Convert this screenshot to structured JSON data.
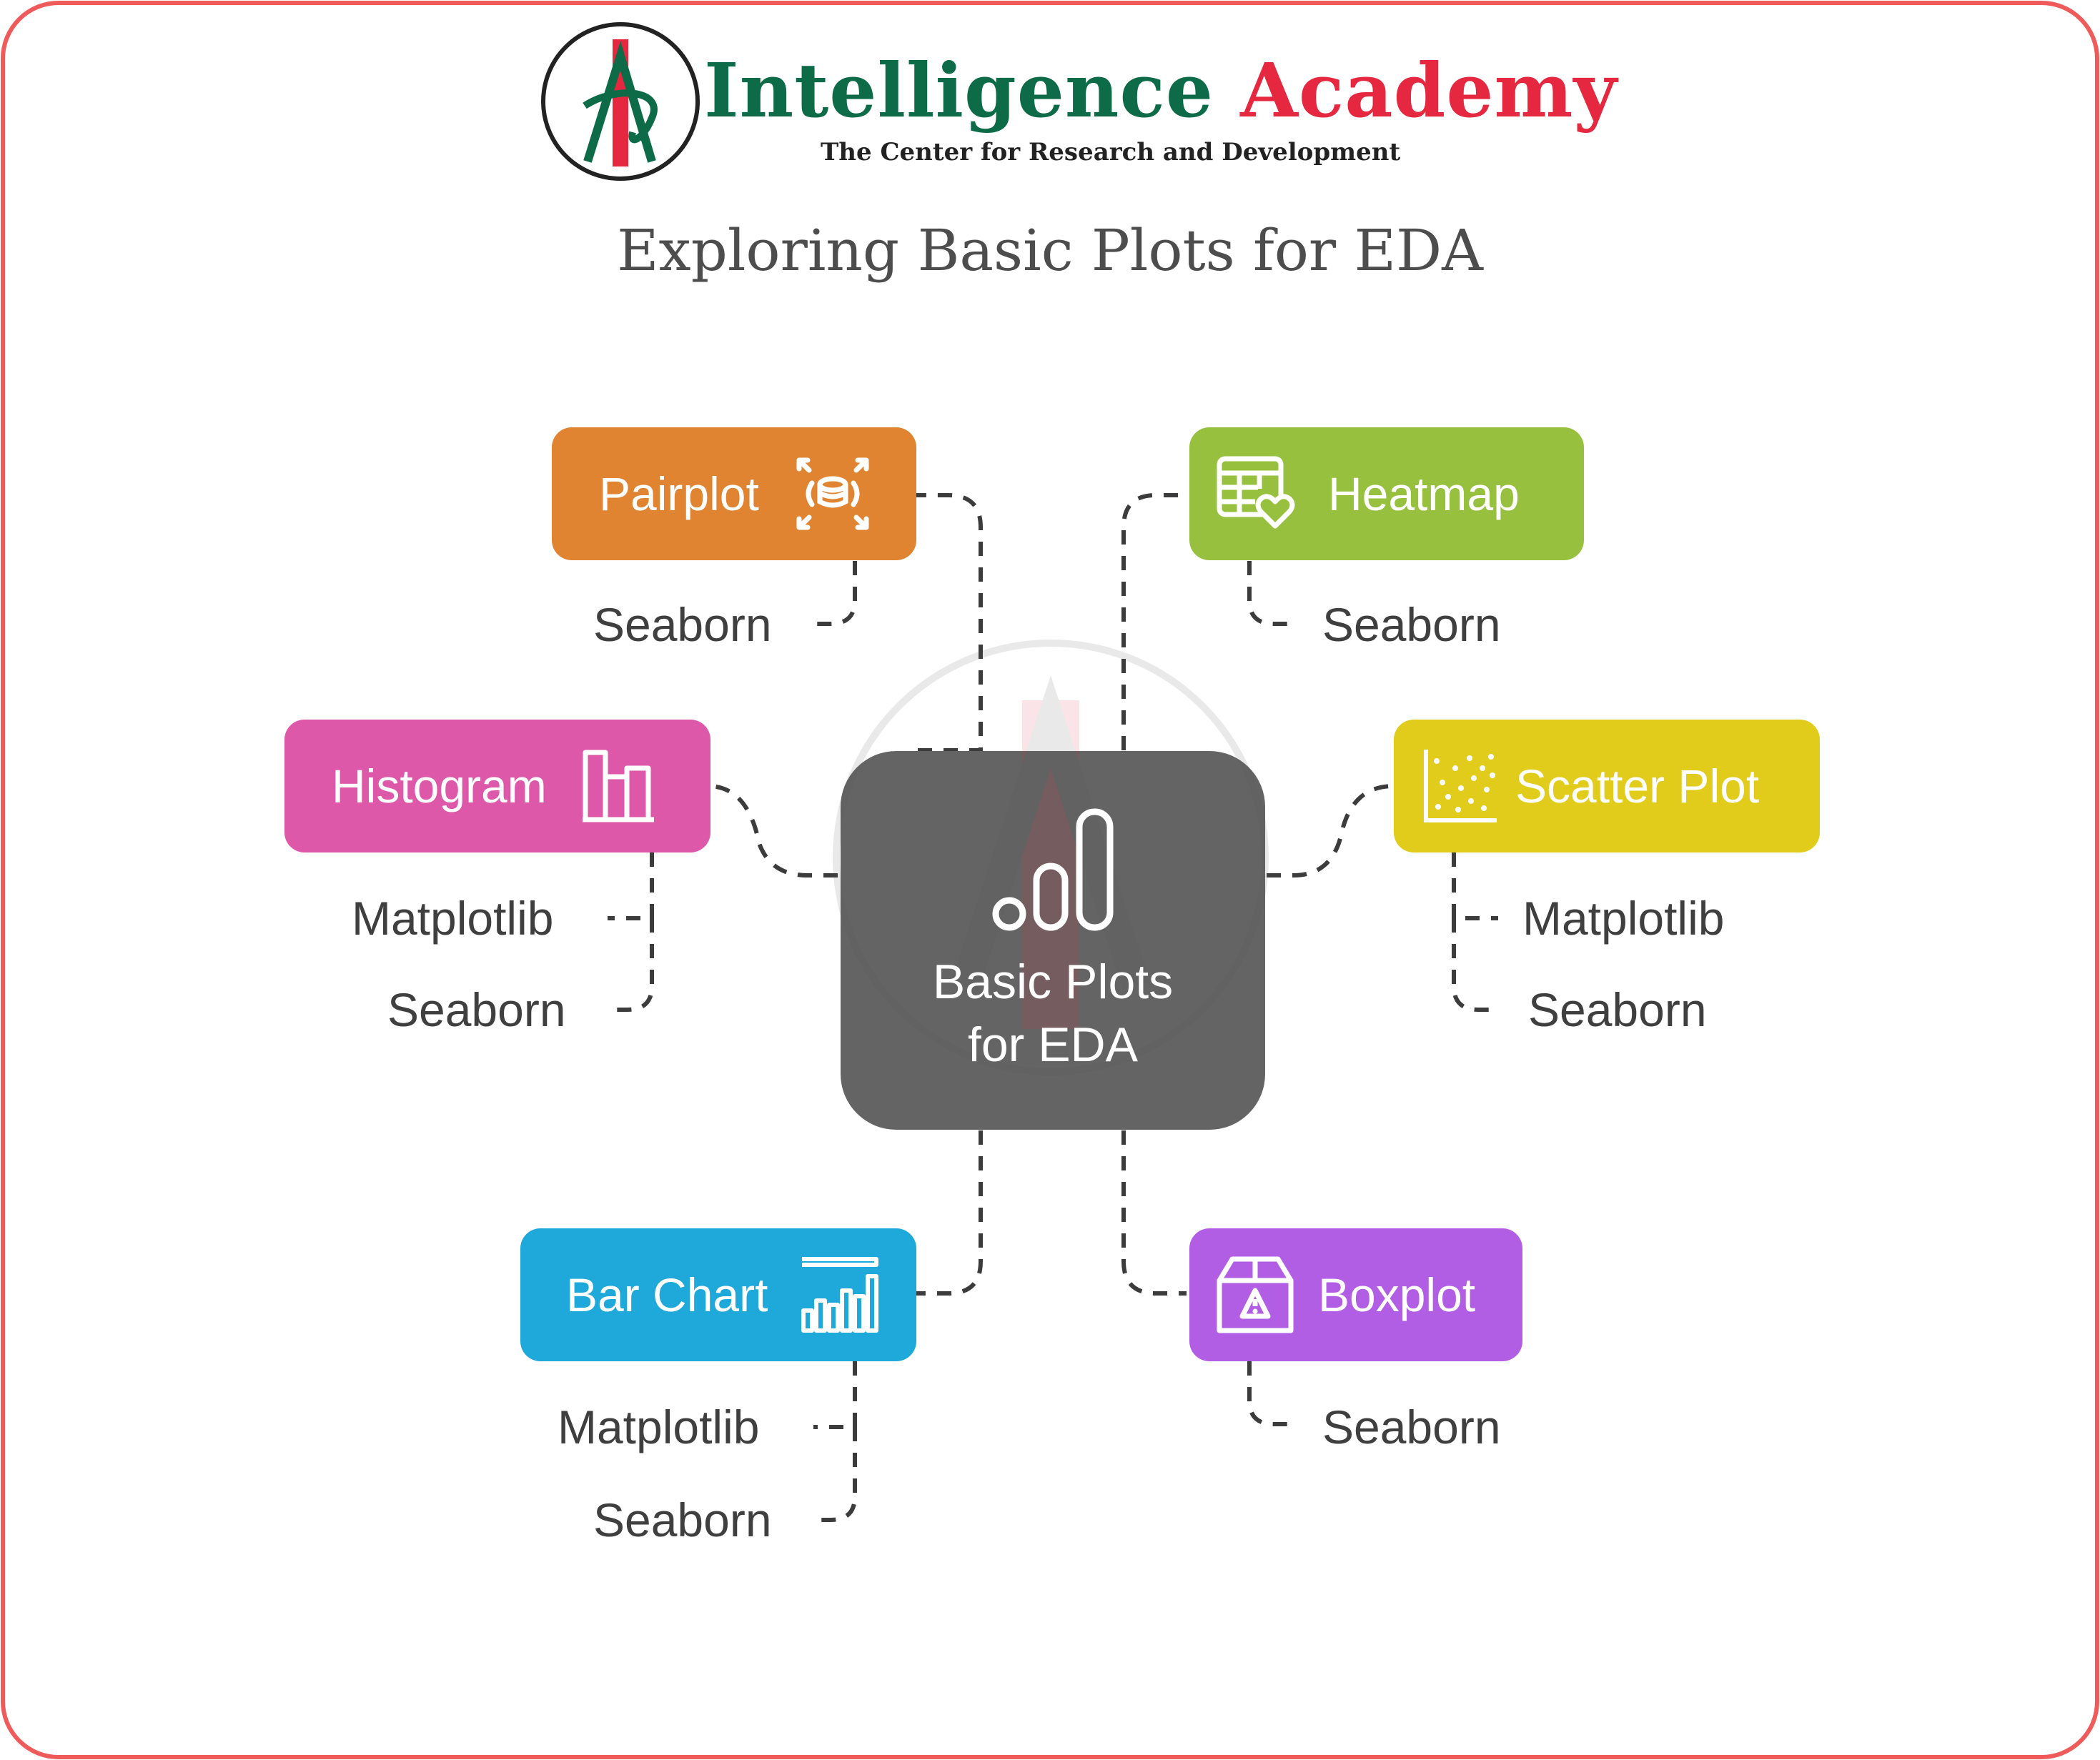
{
  "brand": {
    "name_part1": "Intelligence",
    "name_part2": "Academy",
    "tagline": "The Center for Research and Development"
  },
  "title": "Exploring Basic Plots for EDA",
  "center": {
    "label_line1": "Basic Plots",
    "label_line2": "for EDA",
    "icon": "bar-chart-icon"
  },
  "branches": [
    {
      "label": "Pairplot",
      "icon": "pairplot-icon",
      "color": "#e08432",
      "libraries": [
        "Seaborn"
      ]
    },
    {
      "label": "Heatmap",
      "icon": "heatmap-icon",
      "color": "#96c03d",
      "libraries": [
        "Seaborn"
      ]
    },
    {
      "label": "Histogram",
      "icon": "histogram-icon",
      "color": "#de58aa",
      "libraries": [
        "Matplotlib",
        "Seaborn"
      ]
    },
    {
      "label": "Scatter Plot",
      "icon": "scatter-plot-icon",
      "color": "#e1cc1b",
      "libraries": [
        "Matplotlib",
        "Seaborn"
      ]
    },
    {
      "label": "Bar Chart",
      "icon": "bar-chart-icon",
      "color": "#1fa9da",
      "libraries": [
        "Matplotlib",
        "Seaborn"
      ]
    },
    {
      "label": "Boxplot",
      "icon": "boxplot-icon",
      "color": "#b25ee4",
      "libraries": [
        "Seaborn"
      ]
    }
  ],
  "colors": {
    "frame": "#ef5a5a",
    "center": "#646464",
    "brand_green": "#0d6b48",
    "brand_red": "#e5283f",
    "connector": "#3c3c3c"
  }
}
